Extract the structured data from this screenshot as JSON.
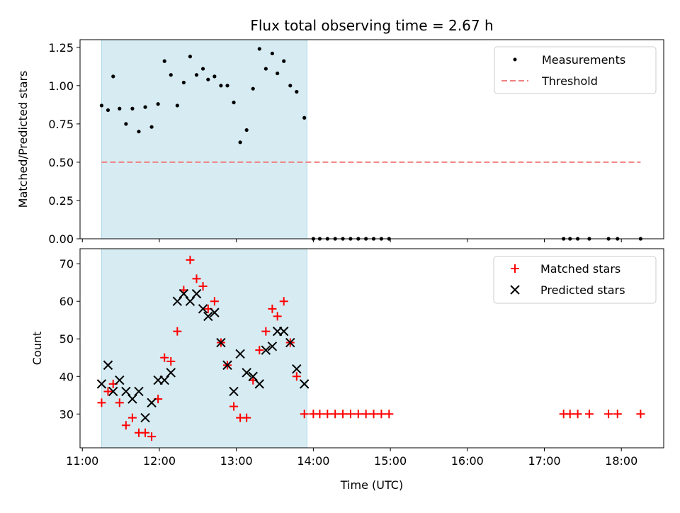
{
  "figure": {
    "title": "Flux total observing time = 2.67 h",
    "xlabel": "Time (UTC)",
    "colors": {
      "measurement": "#000000",
      "threshold": "#f08080",
      "matched": "#ff0000",
      "predicted": "#000000",
      "shade": "#add8e6"
    }
  },
  "chart_data": [
    {
      "type": "scatter",
      "panel": "top",
      "ylabel": "Matched/Predicted stars",
      "xlim_hours": [
        10.97,
        18.55
      ],
      "ylim": [
        0,
        1.3
      ],
      "yticks": [
        "0.00",
        "0.25",
        "0.50",
        "0.75",
        "1.00",
        "1.25"
      ],
      "ytick_values": [
        0,
        0.25,
        0.5,
        0.75,
        1.0,
        1.25
      ],
      "xticks": [
        "11:00",
        "12:00",
        "13:00",
        "14:00",
        "15:00",
        "16:00",
        "17:00",
        "18:00"
      ],
      "xtick_values": [
        11,
        12,
        13,
        14,
        15,
        16,
        17,
        18
      ],
      "shaded_span": [
        "11:15",
        "13:55"
      ],
      "legend": {
        "position": "upper right",
        "entries": [
          "Measurements",
          "Threshold"
        ]
      },
      "series": [
        {
          "name": "Measurements",
          "marker": "dot",
          "x": [
            "11:15",
            "11:20",
            "11:24",
            "11:29",
            "11:34",
            "11:39",
            "11:44",
            "11:49",
            "11:54",
            "11:59",
            "12:04",
            "12:09",
            "12:14",
            "12:19",
            "12:24",
            "12:29",
            "12:34",
            "12:38",
            "12:43",
            "12:48",
            "12:53",
            "12:58",
            "13:03",
            "13:08",
            "13:13",
            "13:18",
            "13:23",
            "13:28",
            "13:32",
            "13:37",
            "13:42",
            "13:47",
            "13:53",
            "14:00",
            "14:05",
            "14:11",
            "14:17",
            "14:23",
            "14:29",
            "14:35",
            "14:41",
            "14:47",
            "14:53",
            "14:59",
            "17:15",
            "17:20",
            "17:26",
            "17:35",
            "17:50",
            "17:57",
            "18:15"
          ],
          "y": [
            0.87,
            0.84,
            1.06,
            0.85,
            0.75,
            0.85,
            0.7,
            0.86,
            0.73,
            0.88,
            1.16,
            1.07,
            0.87,
            1.02,
            1.19,
            1.07,
            1.11,
            1.04,
            1.06,
            1.0,
            1.0,
            0.89,
            0.63,
            0.71,
            0.98,
            1.24,
            1.11,
            1.21,
            1.08,
            1.16,
            1.0,
            0.96,
            0.79,
            0,
            0,
            0,
            0,
            0,
            0,
            0,
            0,
            0,
            0,
            0,
            0,
            0,
            0,
            0,
            0,
            0,
            0
          ]
        },
        {
          "name": "Threshold",
          "style": "dashed",
          "x": [
            "11:15",
            "18:15"
          ],
          "y": [
            0.5,
            0.5
          ]
        }
      ]
    },
    {
      "type": "scatter",
      "panel": "bottom",
      "ylabel": "Count",
      "ylim": [
        21,
        74
      ],
      "yticks": [
        "30",
        "40",
        "50",
        "60",
        "70"
      ],
      "ytick_values": [
        30,
        40,
        50,
        60,
        70
      ],
      "xticks": [
        "11:00",
        "12:00",
        "13:00",
        "14:00",
        "15:00",
        "16:00",
        "17:00",
        "18:00"
      ],
      "xtick_values": [
        11,
        12,
        13,
        14,
        15,
        16,
        17,
        18
      ],
      "shaded_span": [
        "11:15",
        "13:55"
      ],
      "legend": {
        "position": "upper right",
        "entries": [
          "Matched stars",
          "Predicted stars"
        ]
      },
      "series": [
        {
          "name": "Matched stars",
          "marker": "plus",
          "x": [
            "11:15",
            "11:20",
            "11:24",
            "11:29",
            "11:34",
            "11:39",
            "11:44",
            "11:49",
            "11:54",
            "11:59",
            "12:04",
            "12:09",
            "12:14",
            "12:19",
            "12:24",
            "12:29",
            "12:34",
            "12:38",
            "12:43",
            "12:48",
            "12:53",
            "12:58",
            "13:03",
            "13:08",
            "13:13",
            "13:18",
            "13:23",
            "13:28",
            "13:32",
            "13:37",
            "13:42",
            "13:47",
            "13:53",
            "14:00",
            "14:05",
            "14:11",
            "14:17",
            "14:23",
            "14:29",
            "14:35",
            "14:41",
            "14:47",
            "14:53",
            "14:59",
            "17:15",
            "17:20",
            "17:26",
            "17:35",
            "17:50",
            "17:57",
            "18:15"
          ],
          "y": [
            33,
            36,
            38,
            33,
            27,
            29,
            25,
            25,
            24,
            34,
            45,
            44,
            52,
            63,
            71,
            66,
            64,
            58,
            60,
            49,
            43,
            32,
            29,
            29,
            39,
            47,
            52,
            58,
            56,
            60,
            49,
            40,
            30,
            30,
            30,
            30,
            30,
            30,
            30,
            30,
            30,
            30,
            30,
            30,
            30,
            30,
            30,
            30,
            30,
            30,
            30
          ]
        },
        {
          "name": "Predicted stars",
          "marker": "x",
          "x": [
            "11:15",
            "11:20",
            "11:24",
            "11:29",
            "11:34",
            "11:39",
            "11:44",
            "11:49",
            "11:54",
            "11:59",
            "12:04",
            "12:09",
            "12:14",
            "12:19",
            "12:24",
            "12:29",
            "12:34",
            "12:38",
            "12:43",
            "12:48",
            "12:53",
            "12:58",
            "13:03",
            "13:08",
            "13:13",
            "13:18",
            "13:23",
            "13:28",
            "13:32",
            "13:37",
            "13:42",
            "13:47",
            "13:53"
          ],
          "y": [
            38,
            43,
            36,
            39,
            36,
            34,
            36,
            29,
            33,
            39,
            39,
            41,
            60,
            62,
            60,
            62,
            58,
            56,
            57,
            49,
            43,
            36,
            46,
            41,
            40,
            38,
            47,
            48,
            52,
            52,
            49,
            42,
            38
          ]
        }
      ]
    }
  ]
}
